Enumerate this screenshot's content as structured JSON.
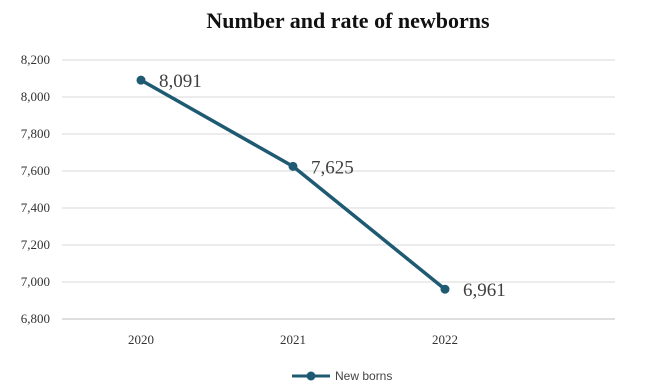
{
  "chart_data": {
    "type": "line",
    "title": "Number and rate of newborns",
    "categories": [
      "2020",
      "2021",
      "2022"
    ],
    "series": [
      {
        "name": "New borns",
        "values": [
          8091,
          7625,
          6961
        ],
        "labels": [
          "8,091",
          "7,625",
          "6,961"
        ]
      }
    ],
    "ylim": [
      6800,
      8200
    ],
    "yticks": [
      6800,
      7000,
      7200,
      7400,
      7600,
      7800,
      8000,
      8200
    ],
    "ytick_labels": [
      "6,800",
      "7,000",
      "7,200",
      "7,400",
      "7,600",
      "7,800",
      "8,000",
      "8,200"
    ],
    "grid": true,
    "legend_position": "bottom",
    "colors": {
      "series": "#1f5a73",
      "grid": "#d9d9d9",
      "axis": "#bfbfbf"
    }
  }
}
